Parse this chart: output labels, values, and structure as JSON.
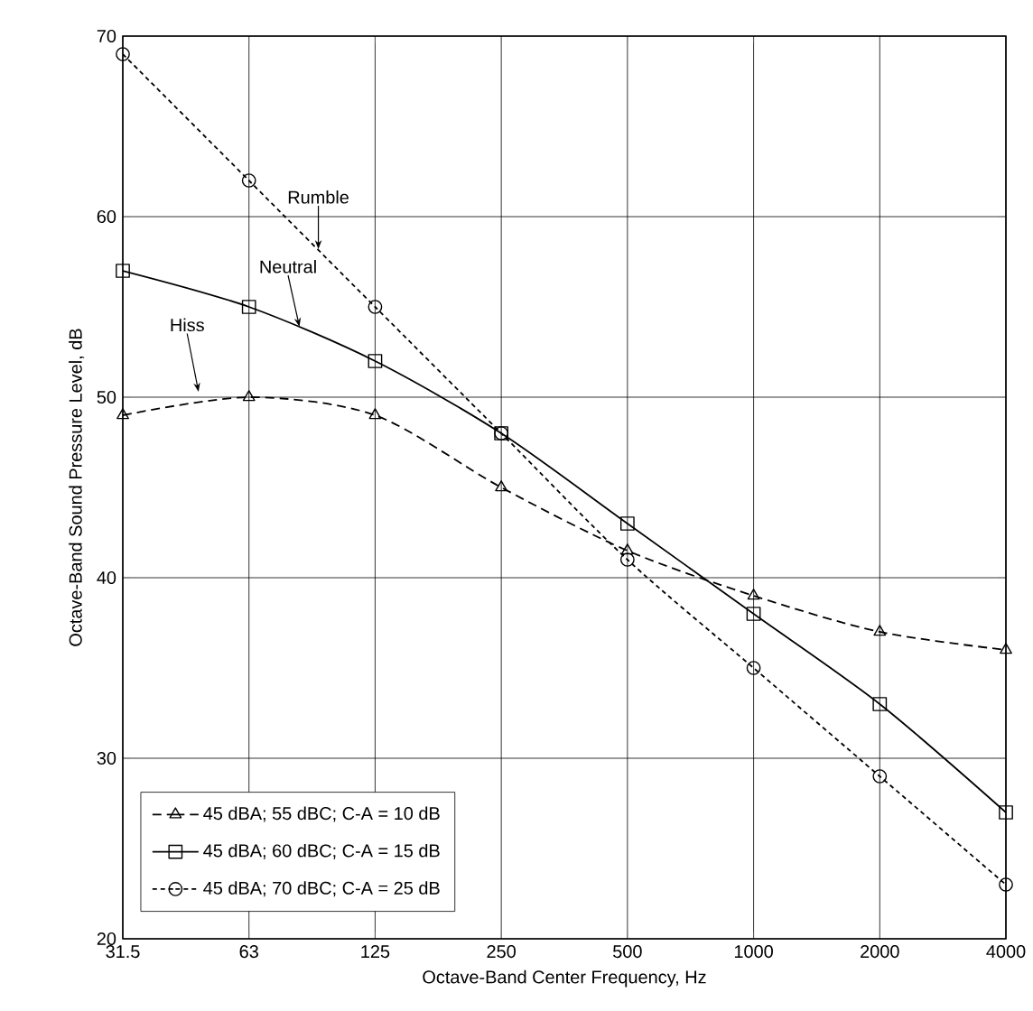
{
  "chart_data": {
    "type": "line",
    "xlabel": "Octave-Band Center Frequency, Hz",
    "ylabel": "Octave-Band Sound Pressure Level, dB",
    "categories": [
      "31.5",
      "63",
      "125",
      "250",
      "500",
      "1000",
      "2000",
      "4000"
    ],
    "ylim": [
      20,
      70
    ],
    "yticks": [
      20,
      30,
      40,
      50,
      60,
      70
    ],
    "grid": true,
    "legend": "bottom left",
    "series": [
      {
        "name": "45 dBA; 55 dBC; C-A = 10 dB",
        "color": "#000000",
        "marker": "triangle",
        "line_style": "dashed",
        "values": [
          49,
          50,
          49,
          45,
          41.5,
          39,
          37,
          36
        ]
      },
      {
        "name": "45 dBA; 60 dBC; C-A = 15 dB",
        "color": "#000000",
        "marker": "square",
        "line_style": "solid",
        "values": [
          57,
          55,
          52,
          48,
          43,
          38,
          33,
          27
        ]
      },
      {
        "name": "45 dBA; 70 dBC; C-A = 25 dB",
        "color": "#000000",
        "marker": "circle",
        "line_style": "dotted",
        "values": [
          69,
          62,
          55,
          48,
          41,
          35,
          29,
          23
        ]
      }
    ],
    "annotations": [
      "Hiss",
      {
        "text": "Neutral",
        "y": 53.9
      },
      {
        "text": "Rumble",
        "y": 58.2
      }
    ]
  }
}
